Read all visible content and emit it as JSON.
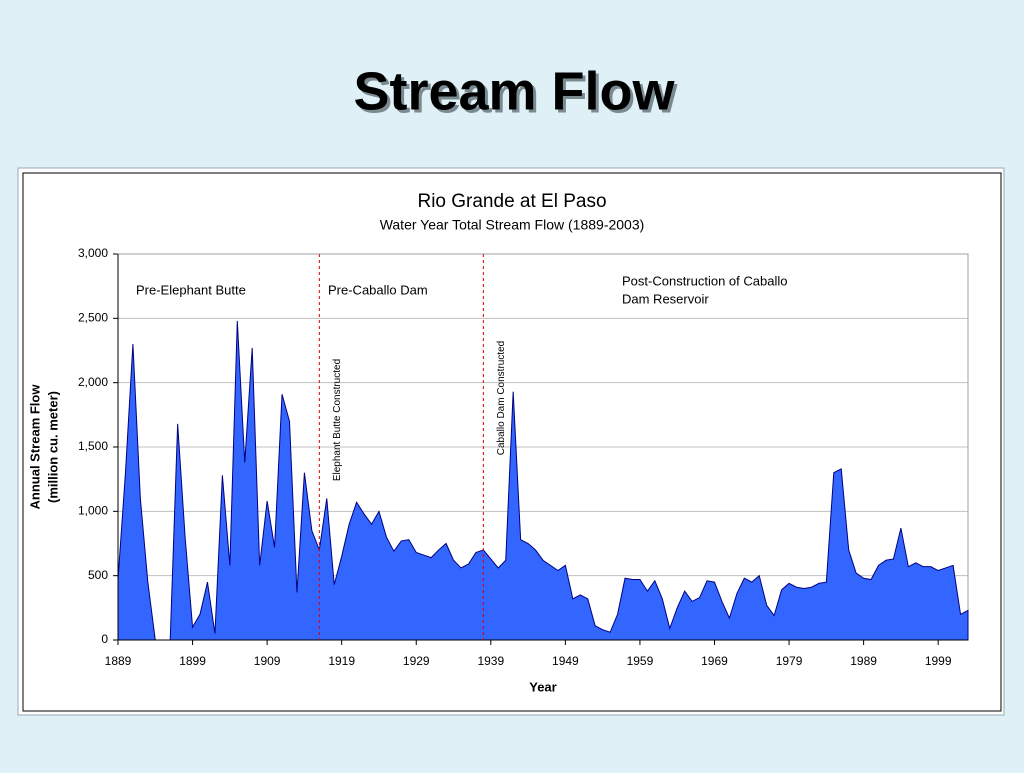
{
  "slide_title": "Stream Flow",
  "chart_data": {
    "type": "area",
    "title": "Rio Grande at El Paso",
    "subtitle": "Water Year Total Stream Flow (1889-2003)",
    "x_label": "Year",
    "y_label": [
      "Annual Stream Flow",
      "(million cu. meter)"
    ],
    "x": [
      1889,
      1890,
      1891,
      1892,
      1893,
      1894,
      1895,
      1896,
      1897,
      1898,
      1899,
      1900,
      1901,
      1902,
      1903,
      1904,
      1905,
      1906,
      1907,
      1908,
      1909,
      1910,
      1911,
      1912,
      1913,
      1914,
      1915,
      1916,
      1917,
      1918,
      1919,
      1920,
      1921,
      1922,
      1923,
      1924,
      1925,
      1926,
      1927,
      1928,
      1929,
      1930,
      1931,
      1932,
      1933,
      1934,
      1935,
      1936,
      1937,
      1938,
      1939,
      1940,
      1941,
      1942,
      1943,
      1944,
      1945,
      1946,
      1947,
      1948,
      1949,
      1950,
      1951,
      1952,
      1953,
      1954,
      1955,
      1956,
      1957,
      1958,
      1959,
      1960,
      1961,
      1962,
      1963,
      1964,
      1965,
      1966,
      1967,
      1968,
      1969,
      1970,
      1971,
      1972,
      1973,
      1974,
      1975,
      1976,
      1977,
      1978,
      1979,
      1980,
      1981,
      1982,
      1983,
      1984,
      1985,
      1986,
      1987,
      1988,
      1989,
      1990,
      1991,
      1992,
      1993,
      1994,
      1995,
      1996,
      1997,
      1998,
      1999,
      2000,
      2001,
      2002,
      2003
    ],
    "series": [
      {
        "name": "Annual Stream Flow",
        "color": "#3366ff",
        "values": [
          470,
          1300,
          2300,
          1100,
          450,
          0,
          0,
          0,
          1680,
          800,
          100,
          200,
          450,
          50,
          1280,
          580,
          2480,
          1380,
          2270,
          580,
          1080,
          720,
          1910,
          1700,
          370,
          1300,
          850,
          700,
          1100,
          430,
          650,
          900,
          1070,
          980,
          900,
          1000,
          800,
          690,
          770,
          780,
          680,
          660,
          640,
          700,
          750,
          620,
          560,
          590,
          680,
          700,
          630,
          560,
          620,
          1930,
          780,
          750,
          700,
          620,
          580,
          540,
          580,
          320,
          350,
          320,
          110,
          80,
          60,
          200,
          480,
          470,
          470,
          380,
          460,
          320,
          90,
          250,
          380,
          300,
          330,
          460,
          450,
          300,
          170,
          360,
          480,
          450,
          500,
          270,
          190,
          390,
          440,
          410,
          400,
          410,
          440,
          450,
          1300,
          1330,
          700,
          520,
          480,
          470,
          580,
          620,
          630,
          870,
          570,
          600,
          570,
          570,
          540,
          560,
          580,
          200,
          230
        ]
      }
    ],
    "xlim": [
      1889,
      2003
    ],
    "xticks": [
      1889,
      1899,
      1909,
      1919,
      1929,
      1939,
      1949,
      1959,
      1969,
      1979,
      1989,
      1999
    ],
    "ylim": [
      0,
      3000
    ],
    "yticks": [
      0,
      500,
      {
        "value": 1000,
        "label": "1,000"
      },
      {
        "value": 1500,
        "label": "1,500"
      },
      {
        "value": 2000,
        "label": "2,000"
      },
      {
        "value": 2500,
        "label": "2,500"
      },
      {
        "value": 3000,
        "label": "3,000"
      }
    ],
    "grid": true,
    "events": [
      {
        "x": 1916,
        "label": "Elephant Butte Constructed"
      },
      {
        "x": 1938,
        "label": "Caballo Dam  Constructed"
      }
    ],
    "regions": [
      [
        "Pre-Elephant Butte"
      ],
      [
        "Pre-Caballo Dam"
      ],
      [
        "Post-Construction of Caballo",
        "Dam Reservoir"
      ]
    ]
  }
}
